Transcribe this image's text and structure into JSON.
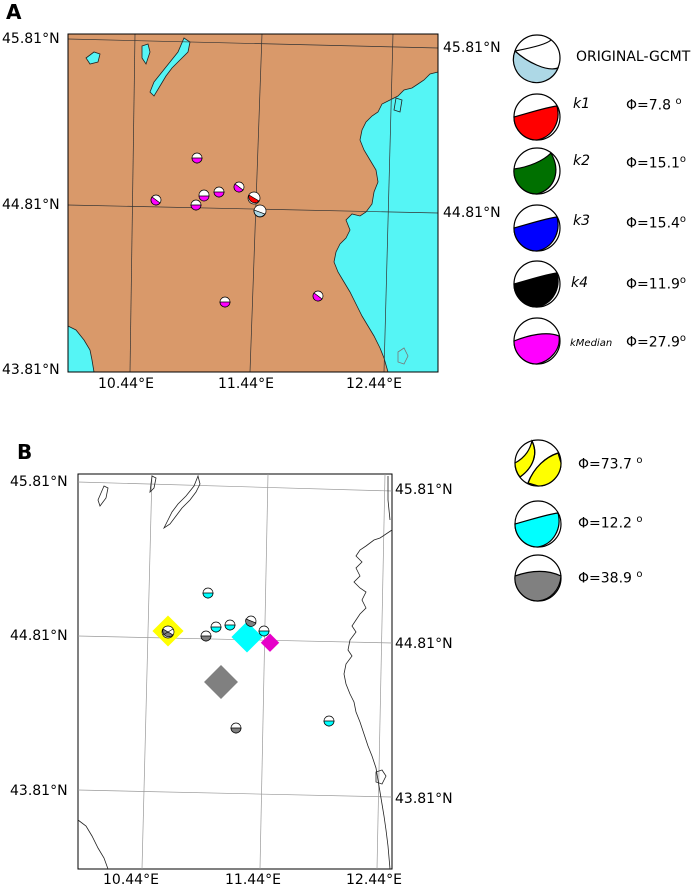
{
  "panel_a": {
    "letter": "A",
    "lat_labels": {
      "top_left": "45.81°N",
      "top_right": "45.81°N",
      "mid_left": "44.81°N",
      "mid_right": "44.81°N",
      "bottom_left": "43.81°N"
    },
    "lon_labels": [
      "10.44°E",
      "11.44°E",
      "12.44°E"
    ],
    "colors": {
      "land": "#d9996a",
      "sea": "#55f5f5",
      "gcmt": "#add8e6"
    },
    "legend": [
      {
        "name": "ORIGINAL-GCMT",
        "phi": "",
        "color": "#add8e6"
      },
      {
        "name": "k1",
        "phi": "Φ=7.8",
        "sup": "o",
        "color": "#ff0000"
      },
      {
        "name": "k2",
        "phi": "Φ=15.1",
        "sup": "o",
        "color": "#007000"
      },
      {
        "name": "k3",
        "phi": "Φ=15.4",
        "sup": "o",
        "color": "#0000ff"
      },
      {
        "name": "k4",
        "phi": "Φ=11.9",
        "sup": "o",
        "color": "#000000"
      },
      {
        "name": "kMedian",
        "phi": "Φ=27.9",
        "sup": "o",
        "color": "#ff00ff"
      }
    ]
  },
  "panel_b": {
    "letter": "B",
    "lat_labels": {
      "top_left": "45.81°N",
      "top_right": "45.81°N",
      "mid_left": "44.81°N",
      "mid_right": "44.81°N",
      "bottom_left": "43.81°N",
      "bottom_right": "43.81°N"
    },
    "lon_labels": [
      "10.44°E",
      "11.44°E",
      "12.44°E"
    ],
    "colors": {
      "yellow": "#ffff00",
      "cyan": "#00ffff",
      "gray": "#808080",
      "magenta": "#e600c8"
    },
    "legend": [
      {
        "phi": "Φ=73.7",
        "sup": "o",
        "color": "#ffff00"
      },
      {
        "phi": "Φ=12.2",
        "sup": "o",
        "color": "#00ffff"
      },
      {
        "phi": "Φ=38.9",
        "sup": "o",
        "color": "#808080"
      }
    ]
  }
}
